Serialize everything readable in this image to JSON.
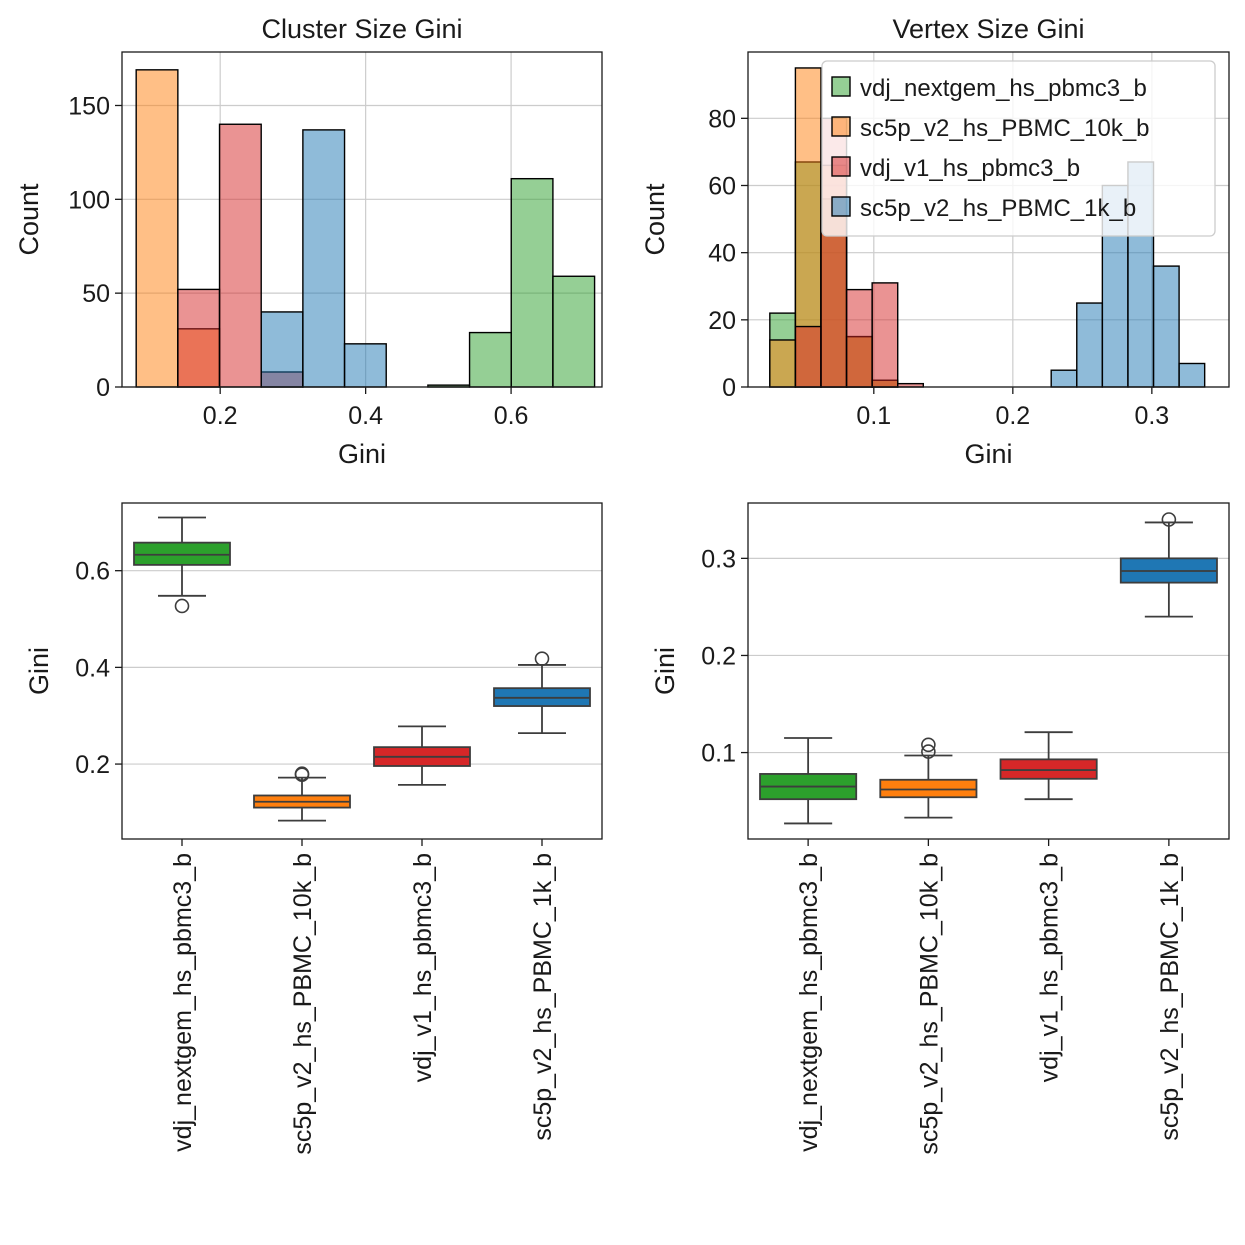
{
  "chart_data": [
    {
      "type": "histogram",
      "title": "Cluster Size Gini",
      "xlabel": "Gini",
      "ylabel": "Count",
      "xlim": [
        0.065,
        0.725
      ],
      "ylim": [
        0,
        178.5
      ],
      "xticks": [
        0.2,
        0.4,
        0.6
      ],
      "xticklabels": [
        "0.2",
        "0.4",
        "0.6"
      ],
      "yticks": [
        0,
        50,
        100,
        150
      ],
      "yticklabels": [
        "0",
        "50",
        "100",
        "150"
      ],
      "grid": true,
      "bin_width": 0.0573,
      "series": [
        {
          "name": "sc5p_v2_hs_PBMC_10k_b",
          "color": "#ff7f0e",
          "bins": [
            [
              0.0845,
              169
            ],
            [
              0.1418,
              31
            ]
          ]
        },
        {
          "name": "vdj_v1_hs_pbmc3_b",
          "color": "#d62728",
          "bins": [
            [
              0.1418,
              52
            ],
            [
              0.1991,
              140
            ],
            [
              0.2564,
              8
            ]
          ]
        },
        {
          "name": "sc5p_v2_hs_PBMC_1k_b",
          "color": "#1f77b4",
          "bins": [
            [
              0.2564,
              40
            ],
            [
              0.3137,
              137
            ],
            [
              0.371,
              23
            ]
          ]
        },
        {
          "name": "vdj_nextgem_hs_pbmc3_b",
          "color": "#2ca02c",
          "bins": [
            [
              0.4856,
              1
            ],
            [
              0.5429,
              29
            ],
            [
              0.6002,
              111
            ],
            [
              0.6575,
              59
            ]
          ]
        }
      ]
    },
    {
      "type": "histogram",
      "title": "Vertex Size Gini",
      "xlabel": "Gini",
      "ylabel": "Count",
      "xlim": [
        0.0095,
        0.3555
      ],
      "ylim": [
        0,
        99.75
      ],
      "xticks": [
        0.1,
        0.2,
        0.3
      ],
      "xticklabels": [
        "0.1",
        "0.2",
        "0.3"
      ],
      "yticks": [
        0,
        20,
        40,
        60,
        80
      ],
      "yticklabels": [
        "0",
        "20",
        "40",
        "60",
        "80"
      ],
      "grid": true,
      "bin_width": 0.0184,
      "legend_position": "top-right",
      "series": [
        {
          "name": "vdj_nextgem_hs_pbmc3_b",
          "color": "#2ca02c",
          "bins": [
            [
              0.0252,
              22
            ],
            [
              0.0436,
              67
            ],
            [
              0.062,
              56
            ],
            [
              0.0804,
              15
            ],
            [
              0.0988,
              2
            ]
          ]
        },
        {
          "name": "sc5p_v2_hs_PBMC_10k_b",
          "color": "#ff7f0e",
          "bins": [
            [
              0.0252,
              14
            ],
            [
              0.0436,
              95
            ],
            [
              0.062,
              66
            ],
            [
              0.0804,
              15
            ],
            [
              0.0988,
              2
            ]
          ]
        },
        {
          "name": "vdj_v1_hs_pbmc3_b",
          "color": "#d62728",
          "bins": [
            [
              0.0436,
              18
            ],
            [
              0.062,
              80
            ],
            [
              0.0804,
              29
            ],
            [
              0.0988,
              31
            ],
            [
              0.1172,
              1
            ]
          ]
        },
        {
          "name": "sc5p_v2_hs_PBMC_1k_b",
          "color": "#1f77b4",
          "bins": [
            [
              0.2276,
              5
            ],
            [
              0.246,
              25
            ],
            [
              0.2644,
              60
            ],
            [
              0.2828,
              67
            ],
            [
              0.3012,
              36
            ],
            [
              0.3196,
              7
            ]
          ]
        }
      ]
    },
    {
      "type": "box",
      "xlabel": "",
      "ylabel": "Gini",
      "ylim": [
        0.045,
        0.74
      ],
      "yticks": [
        0.2,
        0.4,
        0.6
      ],
      "yticklabels": [
        "0.2",
        "0.4",
        "0.6"
      ],
      "grid": true,
      "categories": [
        "vdj_nextgem_hs_pbmc3_b",
        "sc5p_v2_hs_PBMC_10k_b",
        "vdj_v1_hs_pbmc3_b",
        "sc5p_v2_hs_PBMC_1k_b"
      ],
      "boxes": [
        {
          "color": "#2ca02c",
          "whislo": 0.548,
          "q1": 0.612,
          "med": 0.633,
          "q3": 0.658,
          "whishi": 0.71,
          "fliers": [
            0.527
          ]
        },
        {
          "color": "#ff7f0e",
          "whislo": 0.083,
          "q1": 0.11,
          "med": 0.122,
          "q3": 0.135,
          "whishi": 0.172,
          "fliers": [
            0.178,
            0.18
          ]
        },
        {
          "color": "#d62728",
          "whislo": 0.157,
          "q1": 0.196,
          "med": 0.215,
          "q3": 0.235,
          "whishi": 0.278,
          "fliers": []
        },
        {
          "color": "#1f77b4",
          "whislo": 0.264,
          "q1": 0.32,
          "med": 0.337,
          "q3": 0.357,
          "whishi": 0.405,
          "fliers": [
            0.418
          ]
        }
      ]
    },
    {
      "type": "box",
      "xlabel": "",
      "ylabel": "Gini",
      "ylim": [
        0.011,
        0.357
      ],
      "yticks": [
        0.1,
        0.2,
        0.3
      ],
      "yticklabels": [
        "0.1",
        "0.2",
        "0.3"
      ],
      "grid": true,
      "categories": [
        "vdj_nextgem_hs_pbmc3_b",
        "sc5p_v2_hs_PBMC_10k_b",
        "vdj_v1_hs_pbmc3_b",
        "sc5p_v2_hs_PBMC_1k_b"
      ],
      "boxes": [
        {
          "color": "#2ca02c",
          "whislo": 0.027,
          "q1": 0.052,
          "med": 0.065,
          "q3": 0.078,
          "whishi": 0.115,
          "fliers": []
        },
        {
          "color": "#ff7f0e",
          "whislo": 0.033,
          "q1": 0.054,
          "med": 0.062,
          "q3": 0.072,
          "whishi": 0.097,
          "fliers": [
            0.101,
            0.108
          ]
        },
        {
          "color": "#d62728",
          "whislo": 0.052,
          "q1": 0.073,
          "med": 0.082,
          "q3": 0.093,
          "whishi": 0.121,
          "fliers": []
        },
        {
          "color": "#1f77b4",
          "whislo": 0.24,
          "q1": 0.275,
          "med": 0.287,
          "q3": 0.3,
          "whishi": 0.337,
          "fliers": [
            0.34
          ]
        }
      ]
    }
  ]
}
